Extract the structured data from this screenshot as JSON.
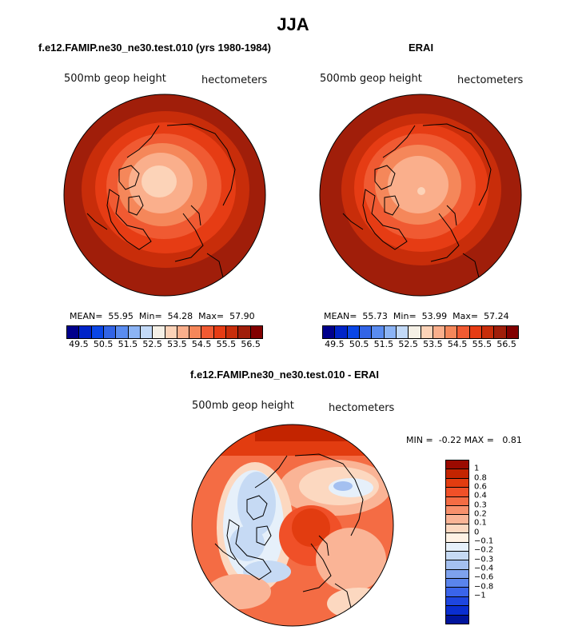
{
  "title": "JJA",
  "panels": [
    {
      "title": "f.e12.FAMIP.ne30_ne30.test.010 (yrs 1980-1984)",
      "field_label": "500mb geop height",
      "units_label": "hectometers",
      "stats": {
        "mean_label": "MEAN=",
        "mean": "55.95",
        "min_label": "Min=",
        "min": "54.28",
        "max_label": "Max=",
        "max": "57.90"
      }
    },
    {
      "title": "ERAI",
      "field_label": "500mb geop height",
      "units_label": "hectometers",
      "stats": {
        "mean_label": "MEAN=",
        "mean": "55.73",
        "min_label": "Min=",
        "min": "53.99",
        "max_label": "Max=",
        "max": "57.24"
      }
    }
  ],
  "colorbar_top": {
    "colors": [
      "#00008c",
      "#0024c8",
      "#0a46e6",
      "#3264e6",
      "#5a8cf0",
      "#8cb4f5",
      "#c3daf8",
      "#f5f0e6",
      "#fcd3b8",
      "#faaf8c",
      "#f5875a",
      "#f05a32",
      "#e63c14",
      "#c82d0a",
      "#a01e0a",
      "#820000"
    ],
    "tick_labels": [
      "49.5",
      "50.5",
      "51.5",
      "52.5",
      "53.5",
      "54.5",
      "55.5",
      "56.5"
    ]
  },
  "diff_panel": {
    "title": "f.e12.FAMIP.ne30_ne30.test.010 - ERAI",
    "field_label": "500mb geop height",
    "units_label": "hectometers",
    "min_label": "MIN =",
    "min": "-0.22",
    "max_label": "MAX =",
    "max": "0.81"
  },
  "colorbar_diff": {
    "colors": [
      "#9b0a00",
      "#c32400",
      "#e23c10",
      "#f05028",
      "#f46c44",
      "#f8906c",
      "#fab496",
      "#fcd8c0",
      "#fff2e4",
      "#e6f0fa",
      "#c6daf4",
      "#a4c0f0",
      "#7ea2ee",
      "#5a84ec",
      "#3a64ea",
      "#1e46e0",
      "#0a2ed0",
      "#00149c"
    ],
    "tick_labels": [
      "1",
      "0.8",
      "0.6",
      "0.4",
      "0.3",
      "0.2",
      "0.1",
      "0",
      "−0.1",
      "−0.2",
      "−0.3",
      "−0.4",
      "−0.6",
      "−0.8",
      "−1"
    ]
  }
}
